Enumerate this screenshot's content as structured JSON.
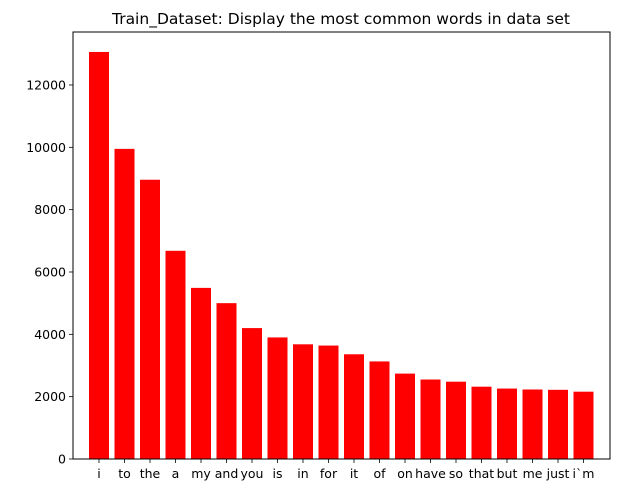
{
  "chart_data": {
    "type": "bar",
    "title": "Train_Dataset: Display the most common words in data set",
    "xlabel": "",
    "ylabel": "",
    "categories": [
      "i",
      "to",
      "the",
      "a",
      "my",
      "and",
      "you",
      "is",
      "in",
      "for",
      "it",
      "of",
      "on",
      "have",
      "so",
      "that",
      "but",
      "me",
      "just",
      "i`m"
    ],
    "values": [
      13060,
      9950,
      8960,
      6680,
      5490,
      5000,
      4200,
      3900,
      3680,
      3640,
      3360,
      3130,
      2740,
      2550,
      2480,
      2320,
      2260,
      2230,
      2220,
      2160
    ],
    "ylim": [
      0,
      13700
    ],
    "yticks": [
      0,
      2000,
      4000,
      6000,
      8000,
      10000,
      12000
    ],
    "ytick_labels": [
      "0",
      "2000",
      "4000",
      "6000",
      "8000",
      "10000",
      "12000"
    ],
    "bar_color": "#ff0000",
    "grid": false,
    "legend": "none"
  }
}
